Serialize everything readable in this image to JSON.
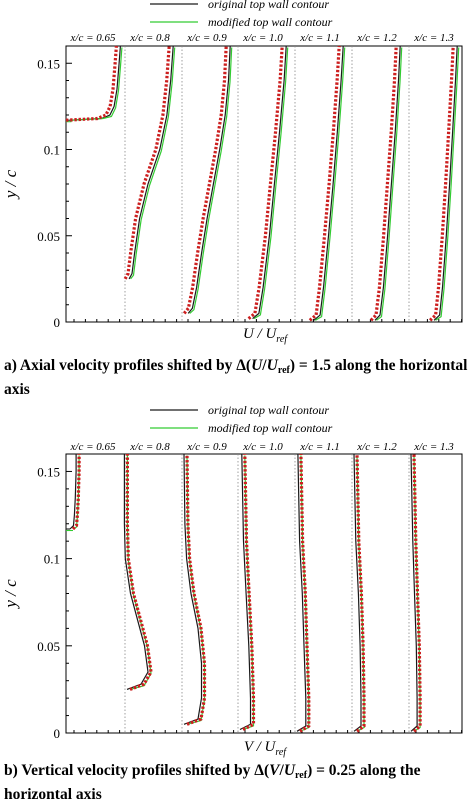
{
  "legend": {
    "original": "original top wall contour",
    "modified": "modified top wall contour"
  },
  "colors": {
    "original": "#1a1a1a",
    "modified": "#33cc33",
    "measured": "#cc1f1f",
    "gridline": "#888888"
  },
  "panels": [
    {
      "caption": {
        "prefix": "a) Axial velocity profiles shifted by Δ(",
        "var": "U",
        "mid": "/",
        "ref": "U",
        "sub": "ref",
        "suffix": ") = 1.5 along the horizontal axis"
      },
      "xlabel": {
        "main": "U / U",
        "sub": "ref"
      }
    },
    {
      "caption": {
        "prefix": "b) Vertical velocity profiles shifted by Δ(",
        "var": "V",
        "mid": "/",
        "ref": "U",
        "sub": "ref",
        "suffix": ") = 0.25 along the horizontal axis"
      },
      "xlabel": {
        "main": "V / U",
        "sub": "ref"
      }
    }
  ],
  "chart_data": [
    {
      "type": "line",
      "ylabel": "y / c",
      "ylim": [
        0,
        0.16
      ],
      "yticks": [
        0,
        0.05,
        0.1,
        0.15
      ],
      "ytick_labels": [
        "0",
        "0.05",
        "0.1",
        "0.15"
      ],
      "shift": 1.5,
      "stations": [
        "x/c = 0.65",
        "x/c = 0.8",
        "x/c = 0.9",
        "x/c = 1.0",
        "x/c = 1.1",
        "x/c = 1.2",
        "x/c = 1.3"
      ],
      "series": [
        {
          "name": "original top wall contour",
          "profiles": [
            {
              "wall_y": 0.117,
              "y": [
                0.117,
                0.118,
                0.12,
                0.125,
                0.135,
                0.15,
                0.16
              ],
              "x": [
                0.0,
                0.75,
                0.95,
                1.05,
                1.12,
                1.17,
                1.2
              ]
            },
            {
              "wall_y": 0.025,
              "y": [
                0.025,
                0.028,
                0.04,
                0.06,
                0.08,
                0.1,
                0.12,
                0.14,
                0.16
              ],
              "x": [
                0.05,
                0.12,
                0.18,
                0.3,
                0.5,
                0.78,
                0.95,
                1.04,
                1.1
              ]
            },
            {
              "wall_y": 0.005,
              "y": [
                0.005,
                0.008,
                0.02,
                0.04,
                0.06,
                0.08,
                0.1,
                0.12,
                0.14,
                0.16
              ],
              "x": [
                0.1,
                0.2,
                0.3,
                0.42,
                0.55,
                0.7,
                0.85,
                0.98,
                1.06,
                1.1
              ]
            },
            {
              "wall_y": 0.002,
              "y": [
                0.002,
                0.005,
                0.02,
                0.05,
                0.08,
                0.11,
                0.14,
                0.16
              ],
              "x": [
                0.3,
                0.45,
                0.55,
                0.7,
                0.82,
                0.94,
                1.05,
                1.1
              ]
            },
            {
              "wall_y": 0.001,
              "y": [
                0.001,
                0.004,
                0.02,
                0.05,
                0.08,
                0.11,
                0.14,
                0.16
              ],
              "x": [
                0.4,
                0.55,
                0.63,
                0.75,
                0.86,
                0.96,
                1.05,
                1.1
              ]
            },
            {
              "wall_y": 0.001,
              "y": [
                0.001,
                0.004,
                0.02,
                0.05,
                0.08,
                0.11,
                0.14,
                0.16
              ],
              "x": [
                0.5,
                0.62,
                0.7,
                0.8,
                0.89,
                0.98,
                1.06,
                1.1
              ]
            },
            {
              "wall_y": 0.001,
              "y": [
                0.001,
                0.004,
                0.02,
                0.05,
                0.08,
                0.11,
                0.14,
                0.16
              ],
              "x": [
                0.55,
                0.68,
                0.75,
                0.84,
                0.92,
                0.99,
                1.06,
                1.1
              ]
            }
          ]
        },
        {
          "name": "modified top wall contour"
        }
      ]
    },
    {
      "type": "line",
      "ylabel": "y / c",
      "ylim": [
        0,
        0.16
      ],
      "yticks": [
        0,
        0.05,
        0.1,
        0.15
      ],
      "ytick_labels": [
        "0",
        "0.05",
        "0.1",
        "0.15"
      ],
      "shift": 0.25,
      "stations": [
        "x/c = 0.65",
        "x/c = 0.8",
        "x/c = 0.9",
        "x/c = 1.0",
        "x/c = 1.1",
        "x/c = 1.2",
        "x/c = 1.3"
      ],
      "series": [
        {
          "name": "original top wall contour",
          "profiles": [
            {
              "wall_y": 0.117,
              "y": [
                0.117,
                0.119,
                0.125,
                0.135,
                0.15,
                0.16
              ],
              "x": [
                0.0,
                0.02,
                0.025,
                0.03,
                0.035,
                0.035
              ]
            },
            {
              "wall_y": 0.025,
              "y": [
                0.025,
                0.028,
                0.035,
                0.05,
                0.065,
                0.08,
                0.1,
                0.12,
                0.16
              ],
              "x": [
                0.0,
                0.08,
                0.12,
                0.1,
                0.06,
                0.02,
                -0.01,
                -0.015,
                -0.015
              ]
            },
            {
              "wall_y": 0.005,
              "y": [
                0.005,
                0.008,
                0.02,
                0.04,
                0.06,
                0.08,
                0.1,
                0.12,
                0.16
              ],
              "x": [
                0.0,
                0.08,
                0.1,
                0.1,
                0.08,
                0.04,
                0.015,
                0.005,
                0.0
              ]
            },
            {
              "wall_y": 0.002,
              "y": [
                0.002,
                0.005,
                0.02,
                0.05,
                0.08,
                0.11,
                0.16
              ],
              "x": [
                0.0,
                0.06,
                0.06,
                0.05,
                0.035,
                0.02,
                0.01
              ]
            },
            {
              "wall_y": 0.001,
              "y": [
                0.001,
                0.004,
                0.02,
                0.05,
                0.08,
                0.11,
                0.16
              ],
              "x": [
                0.0,
                0.05,
                0.05,
                0.04,
                0.03,
                0.015,
                0.005
              ]
            },
            {
              "wall_y": 0.001,
              "y": [
                0.001,
                0.004,
                0.02,
                0.05,
                0.08,
                0.11,
                0.16
              ],
              "x": [
                0.0,
                0.04,
                0.04,
                0.035,
                0.025,
                0.01,
                0.0
              ]
            },
            {
              "wall_y": 0.001,
              "y": [
                0.001,
                0.004,
                0.02,
                0.05,
                0.08,
                0.11,
                0.16
              ],
              "x": [
                0.0,
                0.035,
                0.035,
                0.03,
                0.02,
                0.01,
                0.0
              ]
            }
          ]
        },
        {
          "name": "modified top wall contour"
        }
      ]
    }
  ]
}
